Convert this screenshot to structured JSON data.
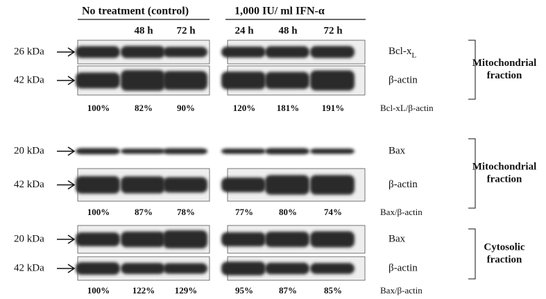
{
  "headers": {
    "control": "No treatment (control)",
    "ifn": "1,000 IU/ ml IFN-α"
  },
  "lanes": {
    "control": [
      "48 h",
      "72 h"
    ],
    "ifn": [
      "24 h",
      "48 h",
      "72 h"
    ]
  },
  "panels": [
    {
      "rows": [
        {
          "marker": "26 kDa",
          "protein": {
            "text": "Bcl-x",
            "sub": "L"
          }
        },
        {
          "marker": "42 kDa",
          "protein": "β-actin"
        }
      ],
      "ratio_label": "Bcl-xL/β-actin",
      "ratios": [
        "100%",
        "82%",
        "90%",
        "120%",
        "181%",
        "191%"
      ],
      "fraction": [
        "Mitochondrial",
        "fraction"
      ]
    },
    {
      "rows": [
        {
          "marker": "20 kDa",
          "protein": "Bax"
        },
        {
          "marker": "42 kDa",
          "protein": "β-actin"
        }
      ],
      "ratio_label": "Bax/β-actin",
      "ratios": [
        "100%",
        "87%",
        "78%",
        "77%",
        "80%",
        "74%"
      ],
      "fraction": [
        "Mitochondrial",
        "fraction"
      ]
    },
    {
      "rows": [
        {
          "marker": "20 kDa",
          "protein": "Bax"
        },
        {
          "marker": "42 kDa",
          "protein": "β-actin"
        }
      ],
      "ratio_label": "Bax/β-actin",
      "ratios": [
        "100%",
        "122%",
        "129%",
        "95%",
        "87%",
        "85%"
      ],
      "fraction": [
        "Cytosolic",
        "fraction"
      ]
    }
  ]
}
